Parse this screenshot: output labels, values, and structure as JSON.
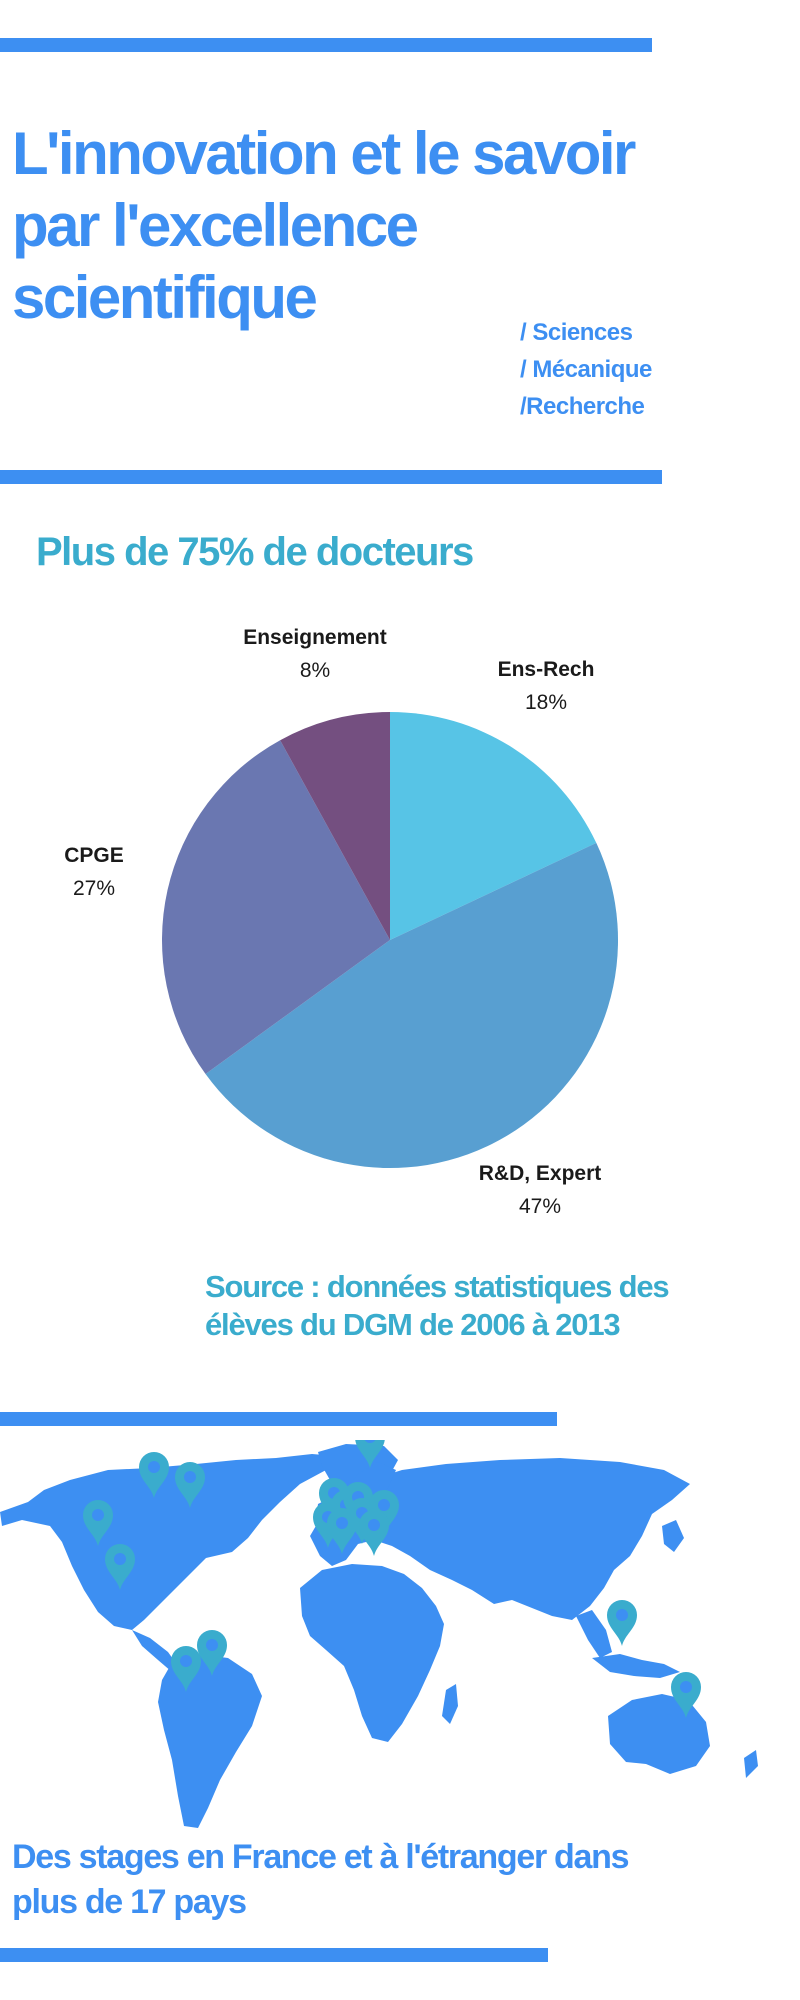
{
  "header": {
    "title_lines": [
      "L'innovation et le savoir",
      "par l'excellence",
      "scientifique"
    ],
    "tags": [
      "/ Sciences",
      "/ Mécanique",
      "/Recherche"
    ]
  },
  "stats": {
    "heading": "Plus de 75% de docteurs",
    "source_lines": [
      "Source : données statistiques des",
      "élèves du DGM de 2006 à 2013"
    ]
  },
  "chart_data": {
    "type": "pie",
    "title": "",
    "slices": [
      {
        "label": "Ens-Rech",
        "percent_label": "18%",
        "value": 18,
        "color": "#57c4e6"
      },
      {
        "label": "R&D, Expert",
        "percent_label": "47%",
        "value": 47,
        "color": "#589fd1"
      },
      {
        "label": "CPGE",
        "percent_label": "27%",
        "value": 27,
        "color": "#6a77b1"
      },
      {
        "label": "Enseignement",
        "percent_label": "8%",
        "value": 8,
        "color": "#744f80"
      }
    ],
    "start": "12 o'clock",
    "direction": "clockwise"
  },
  "map": {
    "land_color": "#3d8ff2",
    "pin_color": "#3aaccd",
    "pin_icon": "map-pin-icon"
  },
  "footer": {
    "lines": [
      "Des stages en France et à l'étranger dans",
      "plus de 17 pays"
    ]
  }
}
